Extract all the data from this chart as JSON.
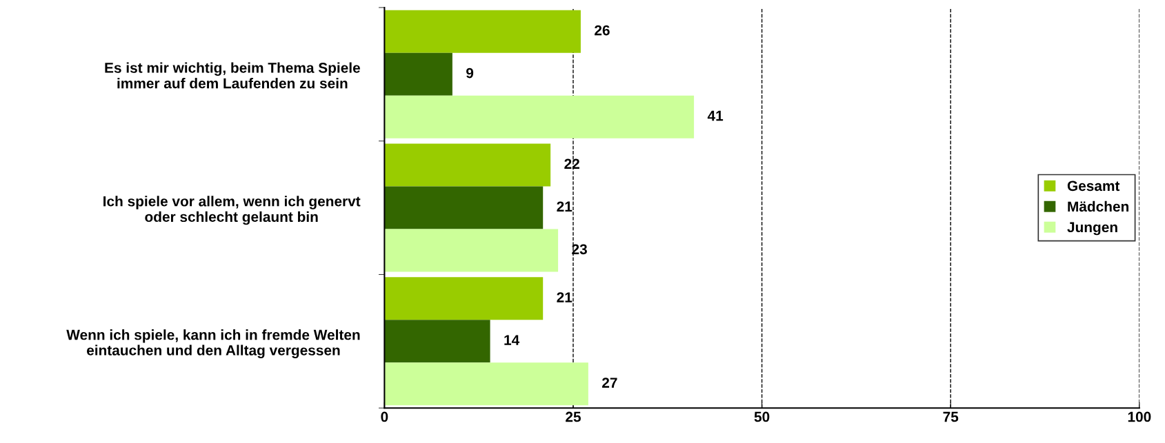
{
  "chart_data": {
    "type": "bar",
    "orientation": "horizontal",
    "categories": [
      "Es ist mir wichtig, beim Thema Spiele\nimmer auf dem Laufenden zu sein",
      "Ich spiele vor allem, wenn ich genervt\noder schlecht gelaunt bin",
      "Wenn ich spiele, kann ich in fremde Welten\neintauchen und den Alltag vergessen"
    ],
    "series": [
      {
        "name": "Gesamt",
        "color": "#99cc00",
        "values": [
          26,
          22,
          21
        ]
      },
      {
        "name": "Mädchen",
        "color": "#336600",
        "values": [
          9,
          21,
          14
        ]
      },
      {
        "name": "Jungen",
        "color": "#ccff99",
        "values": [
          41,
          23,
          27
        ]
      }
    ],
    "xlim": [
      0,
      100
    ],
    "xticks": [
      0,
      25,
      50,
      75,
      100
    ],
    "grid": "x",
    "legend": "right",
    "data_labels": true
  }
}
